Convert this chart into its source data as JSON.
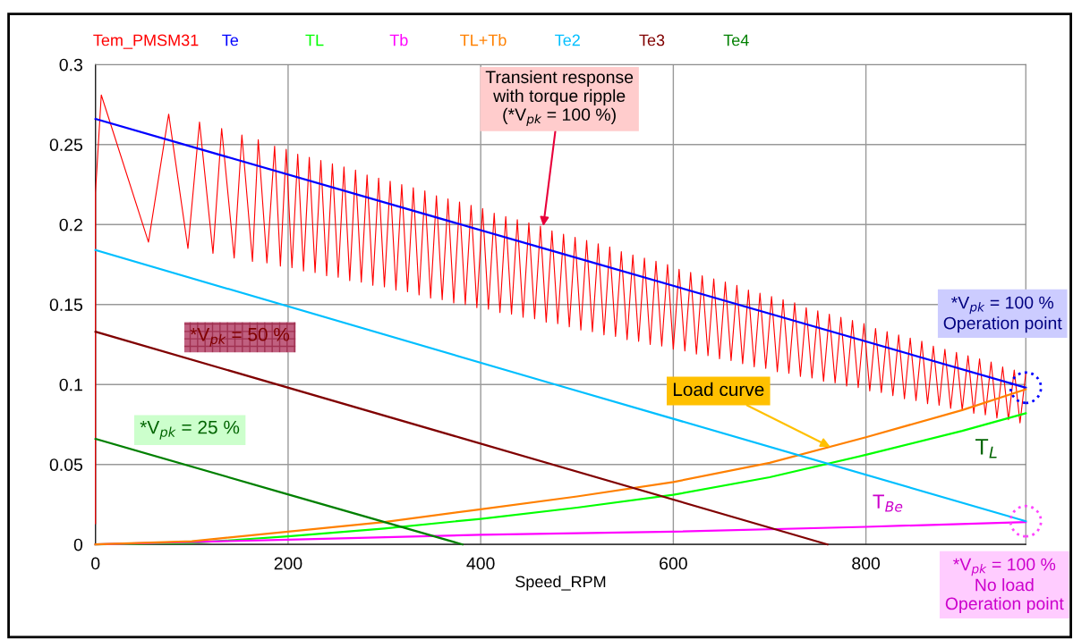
{
  "chart_data": {
    "type": "line",
    "xlabel": "Speed_RPM",
    "xlim": [
      0,
      966
    ],
    "xticks": [
      0,
      200,
      400,
      600,
      800
    ],
    "ylim": [
      0,
      0.3
    ],
    "yticks": [
      0,
      0.05,
      0.1,
      0.15,
      0.2,
      0.25,
      0.3
    ],
    "grid": true,
    "legend": "top",
    "marker": "none",
    "line_style": "solid",
    "series": [
      {
        "name": "Tem_PMSM31",
        "color": "#ff0000",
        "x": [
          0,
          0,
          6,
          55,
          76,
          96,
          108,
          122,
          131,
          144,
          152,
          163,
          169,
          178,
          186,
          192,
          198,
          204,
          210,
          216,
          222,
          228,
          234,
          240,
          246,
          252,
          258,
          264,
          270,
          276,
          282,
          288,
          294,
          300,
          306,
          312,
          318,
          324,
          330,
          336,
          342,
          348,
          354,
          360,
          366,
          372,
          378,
          384,
          390,
          396,
          402,
          408,
          414,
          420,
          426,
          432,
          438,
          444,
          450,
          456,
          462,
          468,
          474,
          480,
          486,
          492,
          498,
          504,
          510,
          516,
          522,
          528,
          534,
          540,
          546,
          552,
          558,
          564,
          570,
          576,
          582,
          588,
          594,
          600,
          606,
          612,
          618,
          624,
          630,
          636,
          642,
          648,
          654,
          660,
          666,
          672,
          678,
          684,
          690,
          696,
          702,
          708,
          714,
          720,
          726,
          732,
          738,
          744,
          750,
          756,
          762,
          768,
          774,
          780,
          786,
          792,
          798,
          804,
          810,
          816,
          822,
          828,
          834,
          840,
          846,
          852,
          858,
          864,
          870,
          876,
          882,
          888,
          894,
          900,
          906,
          912,
          918,
          924,
          930,
          936,
          942,
          948,
          954,
          960,
          966
        ],
        "values": [
          0.013,
          0.22,
          0.281,
          0.189,
          0.269,
          0.185,
          0.264,
          0.182,
          0.26,
          0.179,
          0.256,
          0.177,
          0.253,
          0.176,
          0.249,
          0.174,
          0.247,
          0.173,
          0.244,
          0.171,
          0.242,
          0.17,
          0.24,
          0.168,
          0.238,
          0.167,
          0.236,
          0.165,
          0.234,
          0.164,
          0.231,
          0.162,
          0.229,
          0.161,
          0.227,
          0.159,
          0.225,
          0.158,
          0.223,
          0.156,
          0.221,
          0.154,
          0.218,
          0.153,
          0.216,
          0.151,
          0.214,
          0.15,
          0.212,
          0.148,
          0.21,
          0.147,
          0.207,
          0.145,
          0.205,
          0.144,
          0.203,
          0.142,
          0.201,
          0.141,
          0.199,
          0.139,
          0.196,
          0.138,
          0.194,
          0.136,
          0.192,
          0.134,
          0.19,
          0.133,
          0.188,
          0.131,
          0.186,
          0.13,
          0.183,
          0.128,
          0.181,
          0.127,
          0.179,
          0.125,
          0.177,
          0.124,
          0.175,
          0.122,
          0.172,
          0.121,
          0.17,
          0.119,
          0.168,
          0.118,
          0.166,
          0.116,
          0.164,
          0.115,
          0.162,
          0.113,
          0.159,
          0.111,
          0.157,
          0.11,
          0.155,
          0.108,
          0.153,
          0.107,
          0.151,
          0.105,
          0.148,
          0.104,
          0.146,
          0.102,
          0.144,
          0.101,
          0.142,
          0.099,
          0.14,
          0.098,
          0.138,
          0.096,
          0.135,
          0.095,
          0.133,
          0.093,
          0.131,
          0.091,
          0.129,
          0.09,
          0.127,
          0.088,
          0.124,
          0.087,
          0.122,
          0.085,
          0.12,
          0.084,
          0.118,
          0.082,
          0.116,
          0.081,
          0.114,
          0.079,
          0.111,
          0.078,
          0.109,
          0.076,
          0.107
        ]
      },
      {
        "name": "Te",
        "color": "#0000ff",
        "x": [
          0,
          483,
          966
        ],
        "values": [
          0.266,
          0.182,
          0.098
        ]
      },
      {
        "name": "TL",
        "color": "#00ff00",
        "x": [
          0,
          100,
          200,
          300,
          400,
          500,
          600,
          700,
          800,
          900,
          966
        ],
        "values": [
          0,
          0.001,
          0.005,
          0.01,
          0.016,
          0.023,
          0.031,
          0.042,
          0.056,
          0.071,
          0.082
        ]
      },
      {
        "name": "Tb",
        "color": "#ff00ff",
        "x": [
          0,
          200,
          400,
          600,
          800,
          966
        ],
        "values": [
          0,
          0.003,
          0.006,
          0.008,
          0.011,
          0.014
        ]
      },
      {
        "name": "TL+Tb",
        "color": "#ff8000",
        "x": [
          0,
          100,
          200,
          300,
          400,
          500,
          600,
          700,
          800,
          900,
          966
        ],
        "values": [
          0,
          0.002,
          0.008,
          0.014,
          0.022,
          0.03,
          0.039,
          0.051,
          0.067,
          0.084,
          0.097
        ]
      },
      {
        "name": "Te2",
        "color": "#00bfff",
        "x": [
          0,
          483,
          966
        ],
        "values": [
          0.184,
          0.099,
          0.0145
        ]
      },
      {
        "name": "Te3",
        "color": "#800000",
        "x": [
          0,
          380,
          760
        ],
        "values": [
          0.133,
          0.0665,
          0
        ]
      },
      {
        "name": "Te4",
        "color": "#008000",
        "x": [
          0,
          190,
          381
        ],
        "values": [
          0.066,
          0.033,
          0
        ]
      }
    ],
    "annotations": [
      {
        "text": "Transient response\nwith torque ripple\n(*V$_{pk}$ = 100 %)",
        "x": 465,
        "y": 0.199
      },
      "*V$_{pk}$ = 100 %\nOperation point",
      {
        "text": "Load curve",
        "x": 763,
        "y": 0.061
      },
      {
        "text": "T$_{L}$",
        "x": 850,
        "y": 0.063
      },
      {
        "text": "T$_{Be}$",
        "x": 850,
        "y": 0.011
      },
      "*V$_{pk}$ = 100 %\nNo load\nOperation point",
      {
        "text": "*V$_{pk}$ = 50 %",
        "x": 150,
        "y": 0.107
      },
      {
        "text": "*V$_{pk}$ = 25 %",
        "x": 98,
        "y": 0.049
      }
    ]
  }
}
